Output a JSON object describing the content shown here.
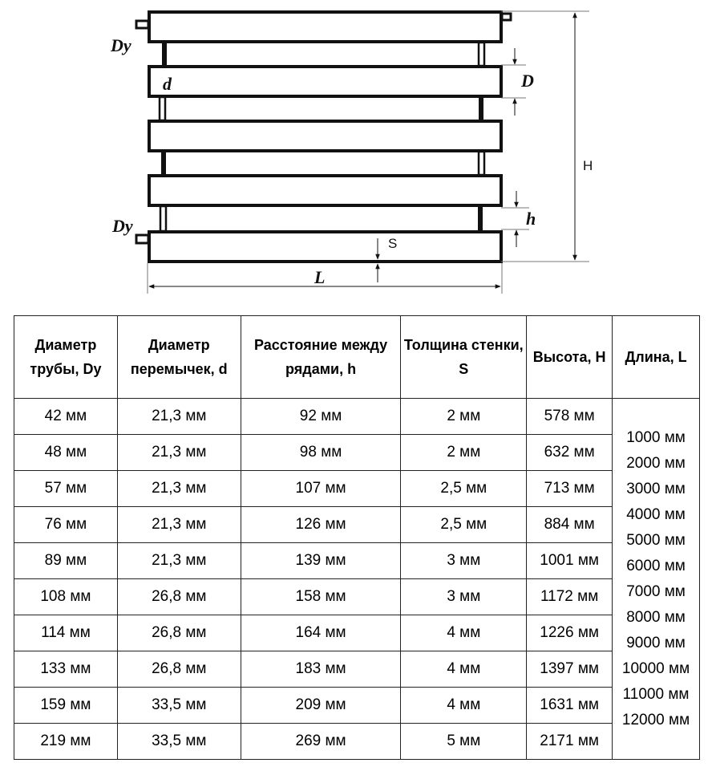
{
  "diagram": {
    "labels": {
      "dy_top": "Dy",
      "dy_bottom": "Dy",
      "d": "d",
      "D": "D",
      "H": "H",
      "h": "h",
      "S": "S",
      "L": "L"
    }
  },
  "table": {
    "headers": [
      "Диаметр трубы, Dy",
      "Диаметр перемычек, d",
      "Расстояние между рядами, h",
      "Толщина стенки, S",
      "Высота, H",
      "Длина, L"
    ],
    "rows": [
      [
        "42 мм",
        "21,3 мм",
        "92 мм",
        "2 мм",
        "578 мм"
      ],
      [
        "48 мм",
        "21,3 мм",
        "98 мм",
        "2 мм",
        "632 мм"
      ],
      [
        "57 мм",
        "21,3 мм",
        "107 мм",
        "2,5 мм",
        "713 мм"
      ],
      [
        "76 мм",
        "21,3 мм",
        "126 мм",
        "2,5 мм",
        "884 мм"
      ],
      [
        "89 мм",
        "21,3 мм",
        "139 мм",
        "3 мм",
        "1001 мм"
      ],
      [
        "108 мм",
        "26,8 мм",
        "158 мм",
        "3 мм",
        "1172 мм"
      ],
      [
        "114 мм",
        "26,8 мм",
        "164 мм",
        "4 мм",
        "1226 мм"
      ],
      [
        "133 мм",
        "26,8 мм",
        "183 мм",
        "4 мм",
        "1397 мм"
      ],
      [
        "159 мм",
        "33,5 мм",
        "209 мм",
        "4 мм",
        "1631 мм"
      ],
      [
        "219 мм",
        "33,5 мм",
        "269 мм",
        "5 мм",
        "2171 мм"
      ]
    ],
    "lengths": [
      "1000 мм",
      "2000 мм",
      "3000 мм",
      "4000 мм",
      "5000 мм",
      "6000 мм",
      "7000 мм",
      "8000 мм",
      "9000 мм",
      "10000 мм",
      "11000 мм",
      "12000 мм"
    ]
  }
}
